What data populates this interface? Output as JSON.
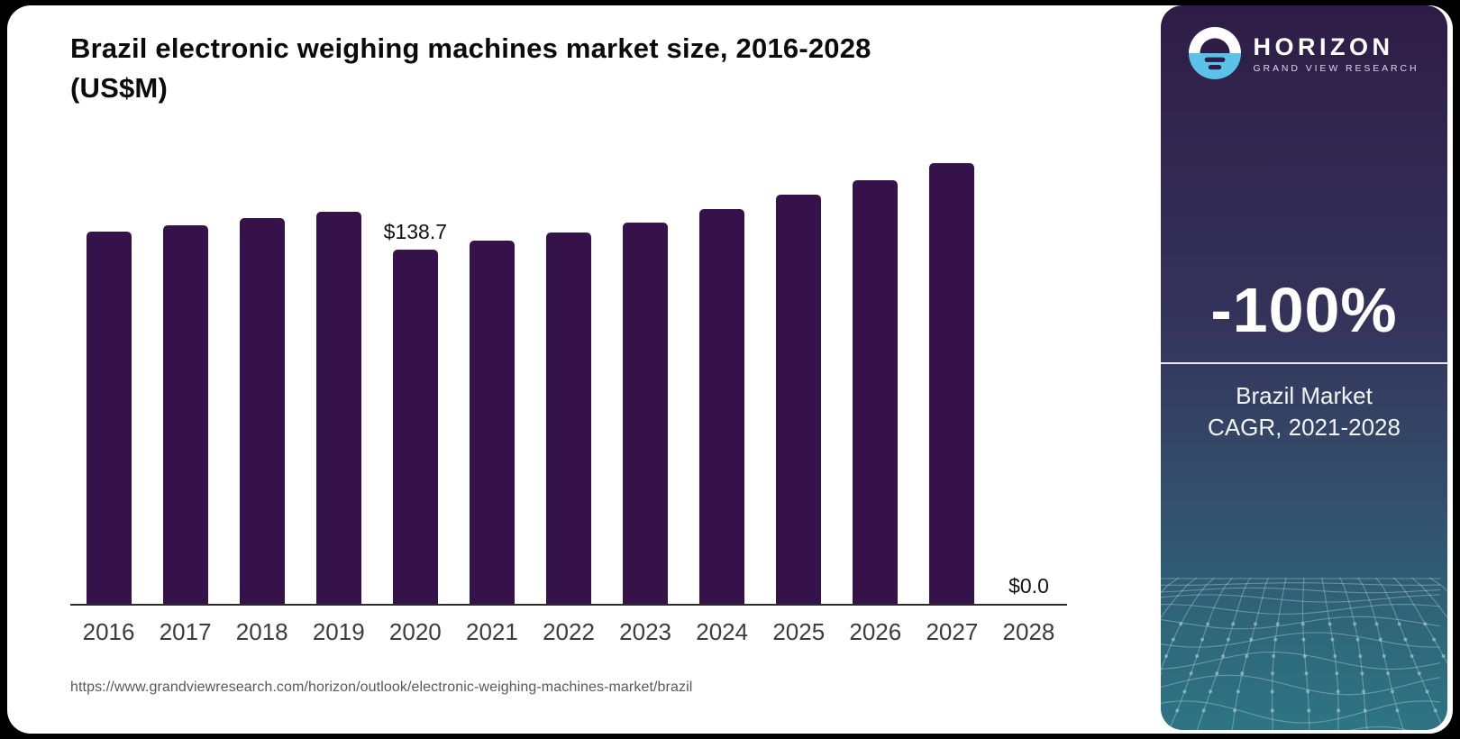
{
  "page": {
    "title_line1": "Brazil electronic weighing machines market size, 2016-2028",
    "title_line2": "(US$M)",
    "source_url": "https://www.grandviewresearch.com/horizon/outlook/electronic-weighing-machines-market/brazil"
  },
  "chart_data": {
    "type": "bar",
    "title": "Brazil electronic weighing machines market size, 2016-2028 (US$M)",
    "categories": [
      "2016",
      "2017",
      "2018",
      "2019",
      "2020",
      "2021",
      "2022",
      "2023",
      "2024",
      "2025",
      "2026",
      "2027",
      "2028"
    ],
    "values": [
      145.8,
      148.2,
      151.1,
      153.6,
      138.7,
      142.2,
      145.4,
      149.3,
      154.6,
      160.2,
      165.9,
      172.6,
      0.0
    ],
    "data_labels": {
      "2020": "$138.7",
      "2028": "$0.0"
    },
    "xlabel": "",
    "ylabel": "",
    "ylim": [
      0,
      180
    ],
    "grid": false,
    "legend": false,
    "bar_color": "#36124b",
    "axis_color": "#2b2b2b"
  },
  "sidebar": {
    "brand": {
      "name": "HORIZON",
      "tagline": "GRAND VIEW RESEARCH",
      "logo_icon": "horizon-sunrise-circle",
      "logo_blue": "#5bc2ea",
      "logo_dark": "#2e1c46"
    },
    "stat_value": "-100%",
    "stat_label_line1": "Brazil Market",
    "stat_label_line2": "CAGR, 2021-2028",
    "colors": {
      "gradient_top": "#2e1c46",
      "gradient_mid": "#34325a",
      "gradient_bottom": "#2e7583",
      "mesh_line": "rgba(214,231,241,0.35)"
    }
  }
}
